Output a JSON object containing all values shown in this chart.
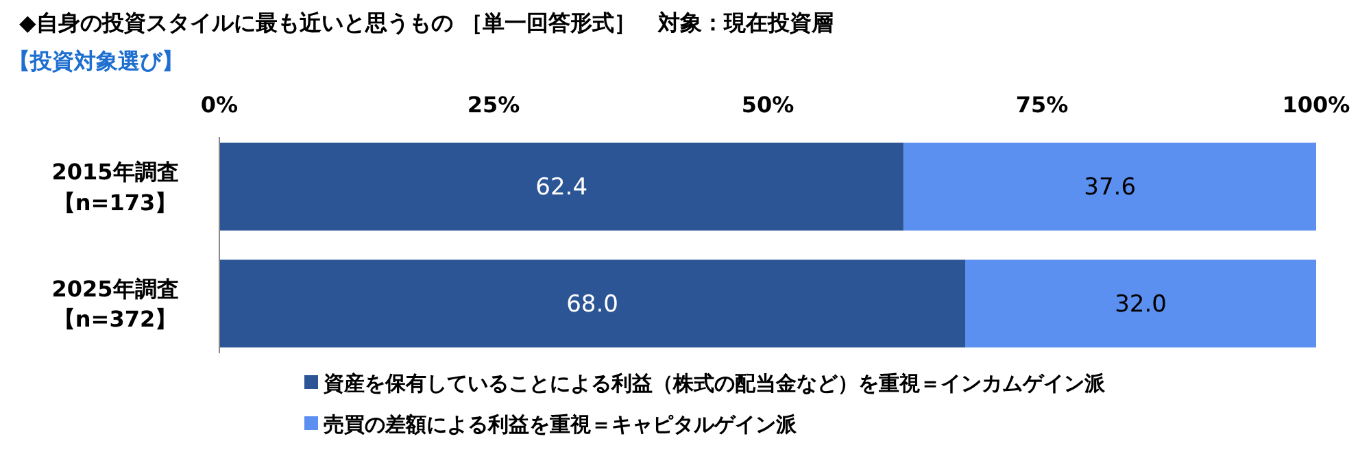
{
  "chart_data": {
    "type": "bar",
    "orientation": "horizontal",
    "stacked": true,
    "title": "◆自身の投資スタイルに最も近いと思うもの ［単一回答形式］　対象：現在投資層",
    "subtitle": "【投資対象選び】",
    "categories": [
      "2015年調査【n=173】",
      "2025年調査【n=372】"
    ],
    "series": [
      {
        "name": "資産を保有していることによる利益（株式の配当金など）を重視＝インカムゲイン派",
        "color": "#2c5596",
        "values": [
          62.4,
          68.0
        ],
        "value_labels": [
          "62.4",
          "68.0"
        ]
      },
      {
        "name": "売買の差額による利益を重視＝キャピタルゲイン派",
        "color": "#5b8ff0",
        "values": [
          37.6,
          32.0
        ],
        "value_labels": [
          "37.6",
          "32.0"
        ]
      }
    ],
    "xlim": [
      0,
      100
    ],
    "xticks": [
      {
        "value": 0,
        "label": "0%"
      },
      {
        "value": 25,
        "label": "25%"
      },
      {
        "value": 50,
        "label": "50%"
      },
      {
        "value": 75,
        "label": "75%"
      },
      {
        "value": 100,
        "label": "100%"
      }
    ],
    "grid": false,
    "legend": "bottom"
  }
}
